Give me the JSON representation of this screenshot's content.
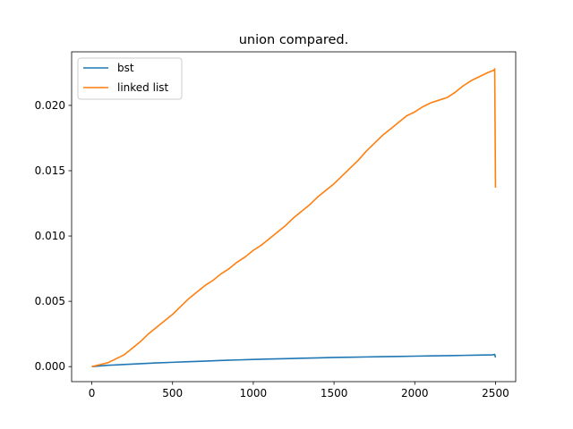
{
  "chart_data": {
    "type": "line",
    "title": "union compared.",
    "xlabel": "",
    "ylabel": "",
    "xlim": [
      -125,
      2625
    ],
    "ylim": [
      -0.00115,
      0.0241
    ],
    "xticks": [
      0,
      500,
      1000,
      1500,
      2000,
      2500
    ],
    "xtick_labels": [
      "0",
      "500",
      "1000",
      "1500",
      "2000",
      "2500"
    ],
    "yticks": [
      0.0,
      0.005,
      0.01,
      0.015,
      0.02
    ],
    "ytick_labels": [
      "0.000",
      "0.005",
      "0.010",
      "0.015",
      "0.020"
    ],
    "grid": false,
    "legend_position": "upper-left",
    "series": [
      {
        "name": "bst",
        "color": "#1f77b4",
        "x": [
          0,
          50,
          100,
          200,
          300,
          400,
          500,
          600,
          700,
          800,
          900,
          1000,
          1100,
          1200,
          1300,
          1400,
          1500,
          1600,
          1700,
          1800,
          1900,
          2000,
          2100,
          2200,
          2300,
          2400,
          2480,
          2495,
          2500
        ],
        "y": [
          0.0,
          5e-05,
          0.0001,
          0.00016,
          0.00022,
          0.00028,
          0.00033,
          0.00038,
          0.00042,
          0.00047,
          0.00051,
          0.00055,
          0.00058,
          0.00061,
          0.00064,
          0.00067,
          0.0007,
          0.00072,
          0.00074,
          0.00076,
          0.00078,
          0.0008,
          0.00082,
          0.00084,
          0.00086,
          0.00088,
          0.0009,
          0.00093,
          0.0007
        ]
      },
      {
        "name": "linked list",
        "color": "#ff7f0e",
        "x": [
          0,
          50,
          100,
          150,
          200,
          250,
          300,
          350,
          400,
          450,
          500,
          550,
          600,
          650,
          700,
          750,
          800,
          850,
          900,
          950,
          1000,
          1050,
          1100,
          1150,
          1200,
          1250,
          1300,
          1350,
          1400,
          1450,
          1500,
          1550,
          1600,
          1650,
          1700,
          1750,
          1800,
          1850,
          1900,
          1950,
          2000,
          2050,
          2100,
          2150,
          2200,
          2250,
          2300,
          2350,
          2400,
          2450,
          2490,
          2495,
          2500
        ],
        "y": [
          0.0,
          0.00015,
          0.0003,
          0.0006,
          0.0009,
          0.0014,
          0.0019,
          0.0025,
          0.003,
          0.0035,
          0.004,
          0.0046,
          0.0052,
          0.0057,
          0.0062,
          0.0066,
          0.0071,
          0.0075,
          0.008,
          0.0084,
          0.0089,
          0.0093,
          0.0098,
          0.0103,
          0.0108,
          0.0114,
          0.0119,
          0.0124,
          0.013,
          0.0135,
          0.014,
          0.0146,
          0.0152,
          0.0158,
          0.0165,
          0.0171,
          0.0177,
          0.0182,
          0.0187,
          0.0192,
          0.0195,
          0.0199,
          0.0202,
          0.0204,
          0.0206,
          0.021,
          0.0215,
          0.0219,
          0.0222,
          0.0225,
          0.0227,
          0.0228,
          0.0137
        ]
      }
    ]
  }
}
